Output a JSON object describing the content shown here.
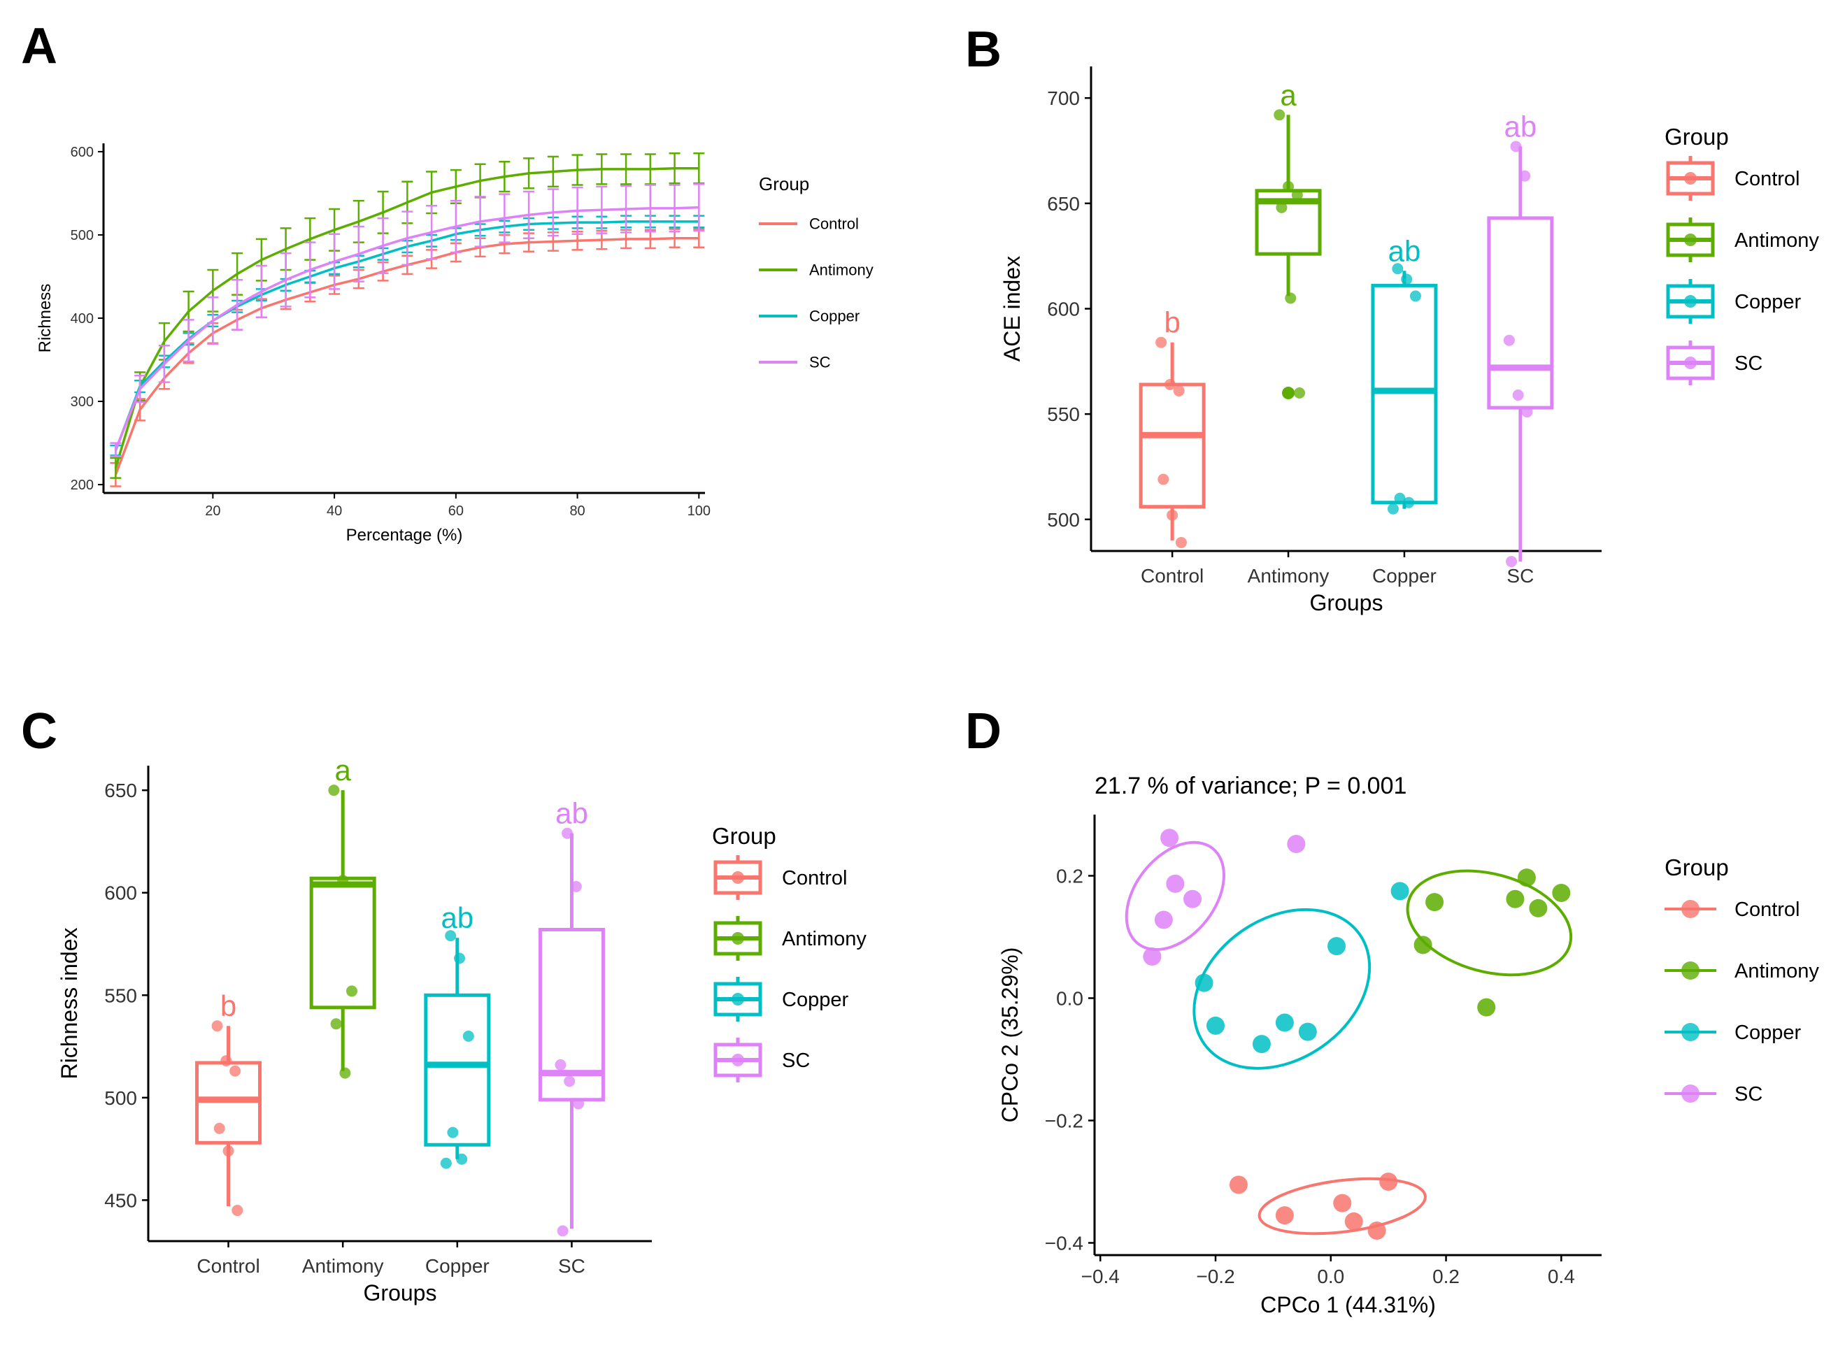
{
  "colors": {
    "Control": "#F8766D",
    "Antimony": "#5DAD00",
    "Copper": "#00BFC4",
    "SC": "#DE82F8",
    "axis": "#000000",
    "text": "#333333"
  },
  "groups": [
    "Control",
    "Antimony",
    "Copper",
    "SC"
  ],
  "chart_data": [
    {
      "id": "A",
      "panel_label": "A",
      "type": "line",
      "title": "",
      "xlabel": "Percentage (%)",
      "ylabel": "Richness",
      "xlim": [
        2,
        101
      ],
      "ylim": [
        190,
        610
      ],
      "x_ticks": [
        20,
        40,
        60,
        80,
        100
      ],
      "y_ticks": [
        200,
        300,
        400,
        500,
        600
      ],
      "legend_title": "Group",
      "legend_position": "right",
      "x": [
        4,
        8,
        12,
        16,
        20,
        24,
        28,
        32,
        36,
        40,
        44,
        48,
        52,
        56,
        60,
        64,
        68,
        72,
        76,
        80,
        84,
        88,
        92,
        96,
        100
      ],
      "series": [
        {
          "name": "Control",
          "values": [
            212,
            290,
            328,
            358,
            382,
            398,
            412,
            422,
            431,
            440,
            447,
            456,
            464,
            471,
            479,
            485,
            489,
            491,
            492,
            493,
            494,
            495,
            495,
            496,
            496
          ],
          "error": [
            14,
            13,
            13,
            12,
            12,
            12,
            11,
            11,
            11,
            11,
            11,
            11,
            11,
            11,
            11,
            11,
            11,
            11,
            11,
            11,
            11,
            11,
            11,
            11,
            11
          ]
        },
        {
          "name": "Antimony",
          "values": [
            220,
            318,
            372,
            408,
            433,
            453,
            470,
            483,
            495,
            506,
            516,
            527,
            539,
            551,
            558,
            565,
            570,
            574,
            576,
            578,
            579,
            579,
            579,
            580,
            580
          ],
          "error": [
            12,
            17,
            22,
            24,
            25,
            25,
            25,
            25,
            25,
            25,
            25,
            25,
            25,
            25,
            20,
            20,
            18,
            18,
            18,
            18,
            18,
            18,
            18,
            18,
            18
          ]
        },
        {
          "name": "Copper",
          "values": [
            241,
            318,
            348,
            375,
            397,
            414,
            428,
            440,
            450,
            460,
            468,
            477,
            486,
            493,
            501,
            506,
            510,
            513,
            514,
            515,
            515,
            516,
            516,
            516,
            516
          ],
          "error": [
            6,
            7,
            7,
            7,
            7,
            7,
            7,
            7,
            7,
            7,
            7,
            7,
            7,
            7,
            7,
            7,
            7,
            7,
            7,
            7,
            7,
            7,
            7,
            7,
            7
          ]
        },
        {
          "name": "SC",
          "values": [
            242,
            315,
            345,
            373,
            397,
            416,
            432,
            446,
            458,
            468,
            477,
            487,
            496,
            503,
            510,
            516,
            520,
            524,
            527,
            529,
            530,
            531,
            532,
            532,
            533
          ],
          "error": [
            8,
            16,
            22,
            25,
            28,
            30,
            31,
            32,
            33,
            33,
            33,
            33,
            32,
            32,
            31,
            30,
            29,
            28,
            28,
            28,
            28,
            28,
            28,
            28,
            28
          ]
        }
      ]
    },
    {
      "id": "B",
      "panel_label": "B",
      "type": "box",
      "title": "",
      "xlabel": "Groups",
      "ylabel": "ACE index",
      "ylim": [
        485,
        715
      ],
      "y_ticks": [
        500,
        550,
        600,
        650,
        700
      ],
      "categories": [
        "Control",
        "Antimony",
        "Copper",
        "SC"
      ],
      "legend_title": "Group",
      "legend_position": "right",
      "boxes": [
        {
          "name": "Control",
          "q1": 506,
          "median": 540,
          "q3": 564,
          "whisker_low": 490,
          "whisker_high": 584,
          "letter": "b",
          "points": [
            584,
            564,
            561,
            519,
            502,
            489
          ]
        },
        {
          "name": "Antimony",
          "q1": 626,
          "median": 651,
          "q3": 656,
          "whisker_low": 606,
          "whisker_high": 692,
          "letter": "a",
          "points": [
            692,
            658,
            654,
            648,
            605,
            560
          ],
          "outliers": [
            560
          ]
        },
        {
          "name": "Copper",
          "q1": 508,
          "median": 561,
          "q3": 611,
          "whisker_low": 505,
          "whisker_high": 618,
          "letter": "ab",
          "points": [
            619,
            614,
            606,
            510,
            508,
            505
          ]
        },
        {
          "name": "SC",
          "q1": 553,
          "median": 572,
          "q3": 643,
          "whisker_low": 480,
          "whisker_high": 677,
          "letter": "ab",
          "points": [
            677,
            663,
            585,
            559,
            551,
            480
          ]
        }
      ]
    },
    {
      "id": "C",
      "panel_label": "C",
      "type": "box",
      "title": "",
      "xlabel": "Groups",
      "ylabel": "Richness index",
      "ylim": [
        430,
        662
      ],
      "y_ticks": [
        450,
        500,
        550,
        600,
        650
      ],
      "categories": [
        "Control",
        "Antimony",
        "Copper",
        "SC"
      ],
      "legend_title": "Group",
      "legend_position": "right",
      "boxes": [
        {
          "name": "Control",
          "q1": 478,
          "median": 499,
          "q3": 517,
          "whisker_low": 447,
          "whisker_high": 535,
          "letter": "b",
          "points": [
            535,
            518,
            513,
            485,
            474,
            445
          ]
        },
        {
          "name": "Antimony",
          "q1": 544,
          "median": 604,
          "q3": 607,
          "whisker_low": 513,
          "whisker_high": 650,
          "letter": "a",
          "points": [
            650,
            606,
            552,
            536,
            512
          ]
        },
        {
          "name": "Copper",
          "q1": 477,
          "median": 516,
          "q3": 550,
          "whisker_low": 470,
          "whisker_high": 578,
          "letter": "ab",
          "points": [
            579,
            568,
            530,
            483,
            470,
            468
          ]
        },
        {
          "name": "SC",
          "q1": 499,
          "median": 512,
          "q3": 582,
          "whisker_low": 436,
          "whisker_high": 629,
          "letter": "ab",
          "points": [
            629,
            603,
            516,
            508,
            497,
            435
          ]
        }
      ]
    },
    {
      "id": "D",
      "panel_label": "D",
      "type": "scatter",
      "title": "21.7 % of variance; P = 0.001",
      "xlabel": "CPCo 1 (44.31%)",
      "ylabel": "CPCo 2 (35.29%)",
      "xlim": [
        -0.41,
        0.47
      ],
      "ylim": [
        -0.42,
        0.3
      ],
      "x_ticks": [
        -0.4,
        -0.2,
        0.0,
        0.2,
        0.4
      ],
      "x_tick_labels": [
        "−0.4",
        "−0.2",
        "0.0",
        "0.2",
        "0.4"
      ],
      "y_ticks": [
        -0.4,
        -0.2,
        0.0,
        0.2
      ],
      "y_tick_labels": [
        "−0.4",
        "−0.2",
        "0.0",
        "0.2"
      ],
      "legend_title": "Group",
      "legend_position": "right",
      "series": [
        {
          "name": "Control",
          "points": [
            [
              -0.16,
              -0.305
            ],
            [
              -0.08,
              -0.355
            ],
            [
              0.02,
              -0.335
            ],
            [
              0.04,
              -0.365
            ],
            [
              0.08,
              -0.38
            ],
            [
              0.1,
              -0.3
            ]
          ],
          "ellipse": {
            "cx": 0.02,
            "cy": -0.34,
            "rx": 0.145,
            "ry": 0.042,
            "angle": 7
          }
        },
        {
          "name": "Antimony",
          "points": [
            [
              0.16,
              0.087
            ],
            [
              0.18,
              0.157
            ],
            [
              0.27,
              -0.015
            ],
            [
              0.32,
              0.162
            ],
            [
              0.34,
              0.197
            ],
            [
              0.36,
              0.147
            ],
            [
              0.4,
              0.172
            ]
          ],
          "ellipse": {
            "cx": 0.275,
            "cy": 0.123,
            "rx": 0.145,
            "ry": 0.08,
            "angle": -15
          }
        },
        {
          "name": "Copper",
          "points": [
            [
              -0.22,
              0.025
            ],
            [
              -0.2,
              -0.045
            ],
            [
              -0.12,
              -0.075
            ],
            [
              -0.08,
              -0.04
            ],
            [
              -0.04,
              -0.055
            ],
            [
              0.01,
              0.085
            ],
            [
              0.12,
              0.175
            ]
          ],
          "ellipse": {
            "cx": -0.085,
            "cy": 0.015,
            "rx": 0.165,
            "ry": 0.115,
            "angle": 35
          }
        },
        {
          "name": "SC",
          "points": [
            [
              -0.31,
              0.068
            ],
            [
              -0.29,
              0.128
            ],
            [
              -0.28,
              0.262
            ],
            [
              -0.27,
              0.187
            ],
            [
              -0.24,
              0.162
            ],
            [
              -0.06,
              0.252
            ]
          ],
          "ellipse": {
            "cx": -0.27,
            "cy": 0.167,
            "rx": 0.105,
            "ry": 0.065,
            "angle": 52
          }
        }
      ]
    }
  ]
}
